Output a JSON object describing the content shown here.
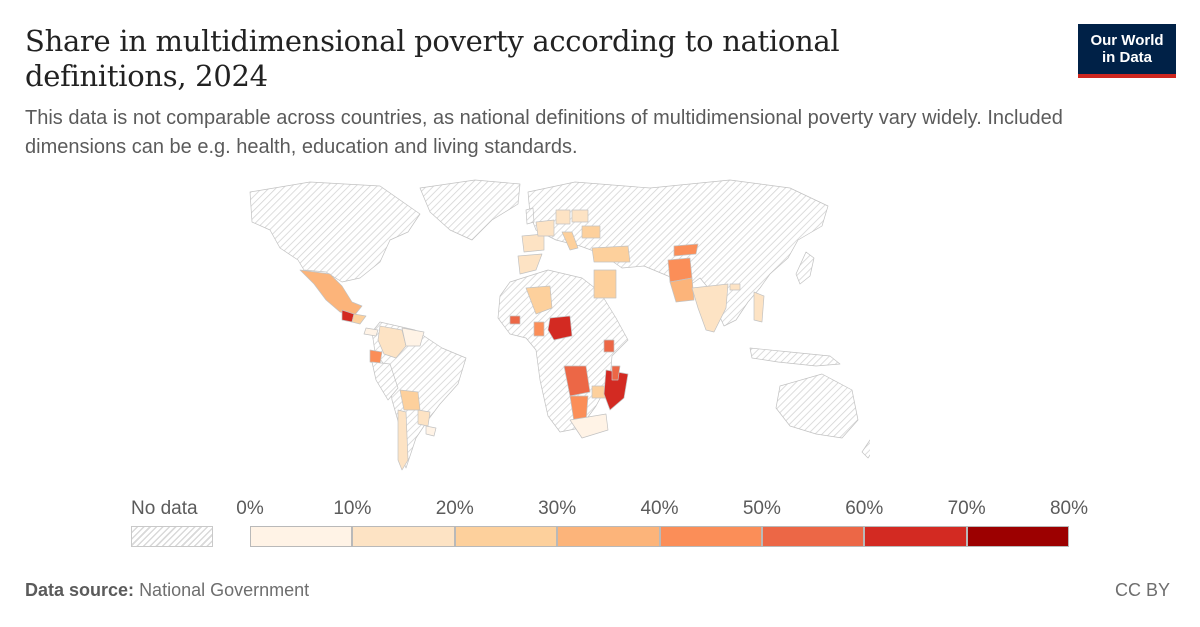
{
  "header": {
    "title": "Share in multidimensional poverty according to national definitions, 2024",
    "subtitle": "This data is not comparable across countries, as national definitions of multidimensional poverty vary widely. Included dimensions can be e.g. health, education and living standards.",
    "logo_line1": "Our World",
    "logo_line2": "in Data"
  },
  "legend": {
    "no_data_label": "No data",
    "ticks": [
      "0%",
      "10%",
      "20%",
      "30%",
      "40%",
      "50%",
      "60%",
      "70%",
      "80%"
    ],
    "bins": [
      {
        "min": 0,
        "max": 10,
        "color": "#fff3e6"
      },
      {
        "min": 10,
        "max": 20,
        "color": "#fde3c4"
      },
      {
        "min": 20,
        "max": 30,
        "color": "#fdd09c"
      },
      {
        "min": 30,
        "max": 40,
        "color": "#fcb47a"
      },
      {
        "min": 40,
        "max": 50,
        "color": "#fb8e58"
      },
      {
        "min": 50,
        "max": 60,
        "color": "#ec6746"
      },
      {
        "min": 60,
        "max": 70,
        "color": "#d32a22"
      },
      {
        "min": 70,
        "max": 80,
        "color": "#9c0000"
      }
    ]
  },
  "colors": {
    "no_data_fill": "#ffffff",
    "no_data_hatch": "#d8d8d8",
    "border": "#c6c6c6"
  },
  "footer": {
    "source_label": "Data source:",
    "source_value": "National Government",
    "license": "CC BY"
  }
}
